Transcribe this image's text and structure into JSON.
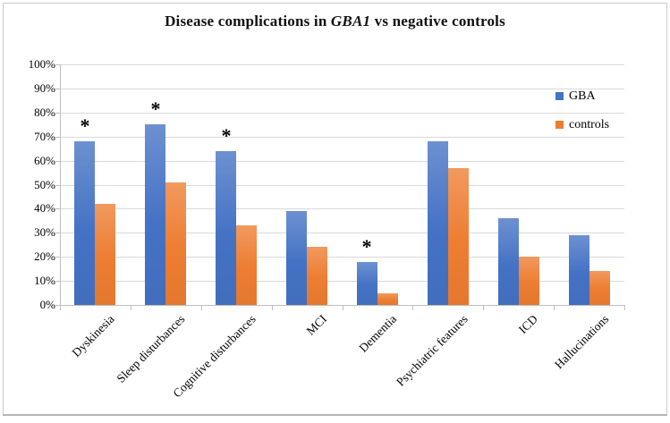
{
  "figure": {
    "title_prefix": "Disease complications in ",
    "title_italic": "GBA1",
    "title_suffix": " vs negative controls"
  },
  "chart_data": {
    "type": "bar",
    "title": "Disease complications in GBA1 vs negative controls",
    "categories": [
      "Dyskinesia",
      "Sleep disturbances",
      "Cognitive disturbances",
      "MCI",
      "Dementia",
      "Psychiatric features",
      "ICD",
      "Hallucinations"
    ],
    "series": [
      {
        "name": "GBA",
        "color": "#4472C4",
        "values": [
          68,
          75,
          64,
          39,
          18,
          68,
          36,
          29
        ]
      },
      {
        "name": "controls",
        "color": "#ED7D31",
        "values": [
          42,
          51,
          33,
          24,
          5,
          57,
          20,
          14
        ]
      }
    ],
    "significance_marker": "*",
    "asterisk_categories": [
      "Dyskinesia",
      "Sleep disturbances",
      "Cognitive disturbances",
      "Dementia"
    ],
    "ylim": [
      0,
      100
    ],
    "ytick_step": 10,
    "ytick_labels": [
      "0%",
      "10%",
      "20%",
      "30%",
      "40%",
      "50%",
      "60%",
      "70%",
      "80%",
      "90%",
      "100%"
    ],
    "grid": true,
    "legend_position": "right"
  },
  "legend": {
    "items": [
      {
        "label": "GBA",
        "color": "#4472C4"
      },
      {
        "label": "controls",
        "color": "#ED7D31"
      }
    ]
  }
}
